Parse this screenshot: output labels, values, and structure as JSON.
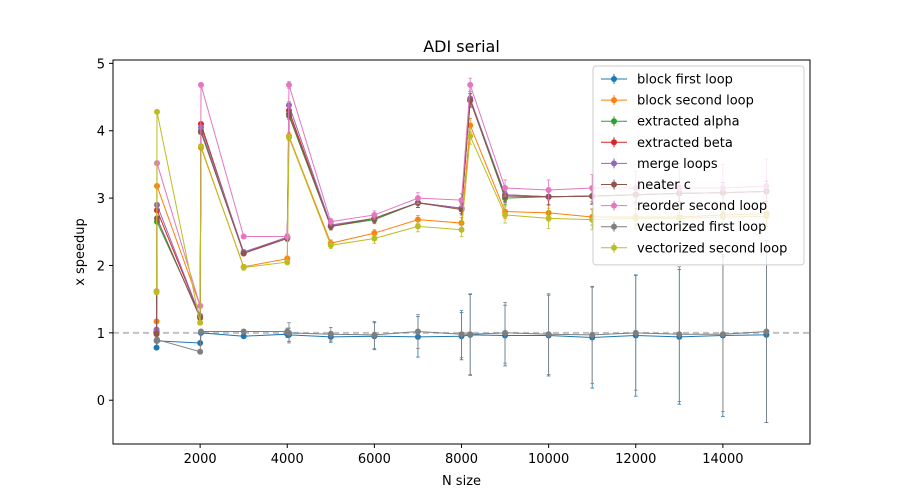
{
  "chart_data": {
    "type": "line",
    "title": "ADI serial",
    "xlabel": "N size",
    "ylabel": "x speedup",
    "xlim": [
      0,
      16000
    ],
    "ylim": [
      -0.65,
      5.05
    ],
    "xticks": [
      2000,
      4000,
      6000,
      8000,
      10000,
      12000,
      14000
    ],
    "yticks": [
      0,
      1,
      2,
      3,
      4,
      5
    ],
    "legend_position": "top-right",
    "reference_line": {
      "y": 1,
      "style": "dashed",
      "color": "#c0c0c0"
    },
    "series": [
      {
        "name": "block first loop",
        "color": "#1f77b4",
        "x": [
          1000,
          1010,
          2000,
          2020,
          3000,
          4000,
          4040,
          5000,
          6000,
          7000,
          8000,
          8200,
          9000,
          10000,
          11000,
          12000,
          13000,
          14000,
          15000
        ],
        "y": [
          0.78,
          0.88,
          0.85,
          1.0,
          0.95,
          0.98,
          0.97,
          0.94,
          0.95,
          0.94,
          0.95,
          0.97,
          0.96,
          0.96,
          0.93,
          0.96,
          0.94,
          0.96,
          0.97
        ],
        "err": [
          0.02,
          0.02,
          0.02,
          0.02,
          0.03,
          0.05,
          0.1,
          0.08,
          0.2,
          0.3,
          0.35,
          0.6,
          0.45,
          0.6,
          0.75,
          0.9,
          1.0,
          1.2,
          1.3
        ]
      },
      {
        "name": "block second loop",
        "color": "#ff7f0e",
        "x": [
          1000,
          1010,
          2000,
          2020,
          3000,
          4000,
          4040,
          5000,
          6000,
          7000,
          8000,
          8200,
          9000,
          10000,
          11000,
          12000,
          13000,
          14000,
          15000
        ],
        "y": [
          1.17,
          3.18,
          1.4,
          3.75,
          1.98,
          2.1,
          3.92,
          2.33,
          2.48,
          2.68,
          2.63,
          4.08,
          2.8,
          2.78,
          2.72,
          2.72,
          2.72,
          2.75,
          2.77
        ],
        "err": [
          0.02,
          0.03,
          0.02,
          0.03,
          0.03,
          0.04,
          0.05,
          0.05,
          0.05,
          0.06,
          0.08,
          0.1,
          0.1,
          0.12,
          0.12,
          0.12,
          0.12,
          0.15,
          0.15
        ]
      },
      {
        "name": "extracted alpha",
        "color": "#2ca02c",
        "x": [
          1000,
          1010,
          2000,
          2020,
          3000,
          4000,
          4040,
          5000,
          6000,
          7000,
          8000,
          8200,
          9000,
          10000,
          11000,
          12000,
          13000,
          14000,
          15000
        ],
        "y": [
          1.0,
          2.65,
          1.25,
          4.0,
          2.18,
          2.42,
          4.22,
          2.58,
          2.68,
          2.93,
          2.85,
          4.45,
          3.0,
          3.02,
          3.03,
          3.05,
          3.07,
          3.08,
          3.1
        ],
        "err": [
          0.02,
          0.03,
          0.02,
          0.03,
          0.03,
          0.04,
          0.05,
          0.05,
          0.06,
          0.07,
          0.08,
          0.1,
          0.1,
          0.12,
          0.12,
          0.12,
          0.12,
          0.15,
          0.15
        ]
      },
      {
        "name": "extracted beta",
        "color": "#d62728",
        "x": [
          1000,
          1010,
          2000,
          2020,
          3000,
          4000,
          4040,
          5000,
          6000,
          7000,
          8000,
          8200,
          9000,
          10000,
          11000,
          12000,
          13000,
          14000,
          15000
        ],
        "y": [
          1.02,
          2.82,
          1.25,
          4.1,
          2.18,
          2.42,
          4.3,
          2.58,
          2.7,
          2.93,
          2.85,
          4.45,
          3.05,
          3.02,
          3.03,
          3.05,
          3.07,
          3.08,
          3.1
        ],
        "err": [
          0.02,
          0.03,
          0.02,
          0.03,
          0.03,
          0.04,
          0.05,
          0.05,
          0.06,
          0.07,
          0.08,
          0.1,
          0.1,
          0.12,
          0.12,
          0.12,
          0.12,
          0.15,
          0.15
        ]
      },
      {
        "name": "merge loops",
        "color": "#9467bd",
        "x": [
          1000,
          1010,
          2000,
          2020,
          3000,
          4000,
          4040,
          5000,
          6000,
          7000,
          8000,
          8200,
          9000,
          10000,
          11000,
          12000,
          13000,
          14000,
          15000
        ],
        "y": [
          1.05,
          2.9,
          1.25,
          4.05,
          2.2,
          2.42,
          4.38,
          2.6,
          2.7,
          2.93,
          2.85,
          4.48,
          3.05,
          3.02,
          3.03,
          3.05,
          3.07,
          3.08,
          3.1
        ],
        "err": [
          0.02,
          0.03,
          0.02,
          0.03,
          0.03,
          0.04,
          0.05,
          0.05,
          0.06,
          0.07,
          0.08,
          0.1,
          0.1,
          0.12,
          0.12,
          0.12,
          0.12,
          0.15,
          0.15
        ]
      },
      {
        "name": "neater c",
        "color": "#8c564b",
        "x": [
          1000,
          1010,
          2000,
          2020,
          3000,
          4000,
          4040,
          5000,
          6000,
          7000,
          8000,
          8200,
          9000,
          10000,
          11000,
          12000,
          13000,
          14000,
          15000
        ],
        "y": [
          0.98,
          2.7,
          1.22,
          3.98,
          2.18,
          2.4,
          4.25,
          2.58,
          2.7,
          2.93,
          2.83,
          4.45,
          3.03,
          3.02,
          3.03,
          3.05,
          3.07,
          3.08,
          3.1
        ],
        "err": [
          0.02,
          0.03,
          0.02,
          0.03,
          0.03,
          0.04,
          0.05,
          0.05,
          0.06,
          0.07,
          0.08,
          0.1,
          0.1,
          0.12,
          0.12,
          0.12,
          0.12,
          0.15,
          0.15
        ]
      },
      {
        "name": "reorder second loop",
        "color": "#e377c2",
        "x": [
          1000,
          1010,
          2000,
          2020,
          3000,
          4000,
          4040,
          5000,
          6000,
          7000,
          8000,
          8200,
          9000,
          10000,
          11000,
          12000,
          13000,
          14000,
          15000
        ],
        "y": [
          1.62,
          3.52,
          1.4,
          4.68,
          2.43,
          2.43,
          4.68,
          2.65,
          2.75,
          3.0,
          2.97,
          4.68,
          3.15,
          3.12,
          3.15,
          3.15,
          3.15,
          3.15,
          3.18
        ],
        "err": [
          0.02,
          0.03,
          0.02,
          0.03,
          0.03,
          0.04,
          0.05,
          0.05,
          0.06,
          0.08,
          0.1,
          0.1,
          0.12,
          0.15,
          0.2,
          0.25,
          0.3,
          0.35,
          0.4
        ]
      },
      {
        "name": "vectorized first loop",
        "color": "#7f7f7f",
        "x": [
          1000,
          1010,
          2000,
          2020,
          3000,
          4000,
          4040,
          5000,
          6000,
          7000,
          8000,
          8200,
          9000,
          10000,
          11000,
          12000,
          13000,
          14000,
          15000
        ],
        "y": [
          0.88,
          0.9,
          0.72,
          1.02,
          1.02,
          1.02,
          1.0,
          0.98,
          0.97,
          1.02,
          0.98,
          0.98,
          1.0,
          0.98,
          0.97,
          1.0,
          0.98,
          0.98,
          1.02
        ],
        "err": [
          0.02,
          0.02,
          0.02,
          0.02,
          0.03,
          0.05,
          0.15,
          0.1,
          0.2,
          0.25,
          0.35,
          0.6,
          0.45,
          0.6,
          0.72,
          0.85,
          1.0,
          1.15,
          1.35
        ]
      },
      {
        "name": "vectorized second loop",
        "color": "#bcbd22",
        "x": [
          1000,
          1010,
          2000,
          2020,
          3000,
          4000,
          4040,
          5000,
          6000,
          7000,
          8000,
          8200,
          9000,
          10000,
          11000,
          12000,
          13000,
          14000,
          15000
        ],
        "y": [
          1.6,
          4.28,
          1.15,
          3.77,
          1.97,
          2.05,
          3.9,
          2.3,
          2.4,
          2.58,
          2.53,
          3.92,
          2.75,
          2.7,
          2.68,
          2.7,
          2.7,
          2.72,
          2.73
        ],
        "err": [
          0.02,
          0.03,
          0.02,
          0.03,
          0.04,
          0.04,
          0.05,
          0.05,
          0.07,
          0.08,
          0.1,
          0.12,
          0.12,
          0.15,
          0.15,
          0.15,
          0.15,
          0.15,
          0.15
        ]
      }
    ]
  }
}
